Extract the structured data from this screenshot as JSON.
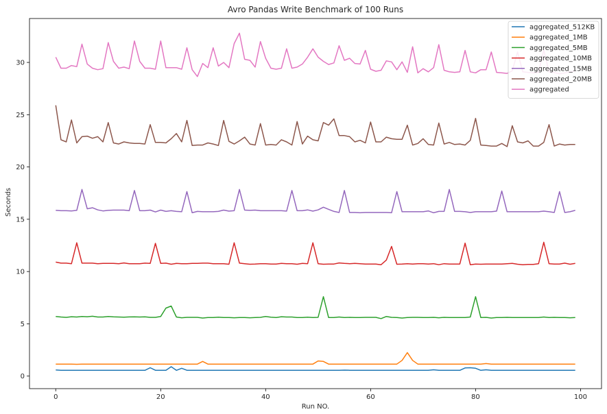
{
  "chart_data": {
    "type": "line",
    "title": "Avro Pandas Write Benchmark of 100 Runs",
    "xlabel": "Run NO.",
    "ylabel": "Seconds",
    "xlim": [
      -5,
      104
    ],
    "ylim": [
      -1.2,
      34.2
    ],
    "xticks": [
      0,
      20,
      40,
      60,
      80,
      100
    ],
    "yticks": [
      0,
      5,
      10,
      15,
      20,
      25,
      30
    ],
    "legend_position": "top-right",
    "x": [
      0,
      1,
      2,
      3,
      4,
      5,
      6,
      7,
      8,
      9,
      10,
      11,
      12,
      13,
      14,
      15,
      16,
      17,
      18,
      19,
      20,
      21,
      22,
      23,
      24,
      25,
      26,
      27,
      28,
      29,
      30,
      31,
      32,
      33,
      34,
      35,
      36,
      37,
      38,
      39,
      40,
      41,
      42,
      43,
      44,
      45,
      46,
      47,
      48,
      49,
      50,
      51,
      52,
      53,
      54,
      55,
      56,
      57,
      58,
      59,
      60,
      61,
      62,
      63,
      64,
      65,
      66,
      67,
      68,
      69,
      70,
      71,
      72,
      73,
      74,
      75,
      76,
      77,
      78,
      79,
      80,
      81,
      82,
      83,
      84,
      85,
      86,
      87,
      88,
      89,
      90,
      91,
      92,
      93,
      94,
      95,
      96,
      97,
      98,
      99
    ],
    "series": [
      {
        "name": "aggregated_512KB",
        "color": "#1f77b4",
        "values": [
          0.58,
          0.56,
          0.56,
          0.55,
          0.56,
          0.55,
          0.56,
          0.55,
          0.55,
          0.55,
          0.55,
          0.55,
          0.56,
          0.55,
          0.55,
          0.55,
          0.55,
          0.55,
          0.8,
          0.56,
          0.55,
          0.55,
          0.9,
          0.55,
          0.75,
          0.56,
          0.55,
          0.55,
          0.56,
          0.55,
          0.55,
          0.55,
          0.55,
          0.55,
          0.55,
          0.56,
          0.55,
          0.55,
          0.55,
          0.55,
          0.55,
          0.56,
          0.55,
          0.55,
          0.55,
          0.55,
          0.55,
          0.55,
          0.55,
          0.55,
          0.55,
          0.55,
          0.55,
          0.55,
          0.56,
          0.57,
          0.56,
          0.56,
          0.55,
          0.55,
          0.55,
          0.55,
          0.55,
          0.55,
          0.55,
          0.55,
          0.55,
          0.55,
          0.55,
          0.55,
          0.55,
          0.55,
          0.6,
          0.55,
          0.55,
          0.55,
          0.55,
          0.55,
          0.78,
          0.8,
          0.75,
          0.55,
          0.6,
          0.56,
          0.55,
          0.55,
          0.55,
          0.55,
          0.55,
          0.55,
          0.55,
          0.55,
          0.55,
          0.55,
          0.55,
          0.55,
          0.55,
          0.55,
          0.55,
          0.55
        ]
      },
      {
        "name": "aggregated_1MB",
        "color": "#ff7f0e",
        "values": [
          1.15,
          1.15,
          1.15,
          1.15,
          1.13,
          1.14,
          1.15,
          1.15,
          1.15,
          1.15,
          1.14,
          1.14,
          1.15,
          1.15,
          1.14,
          1.15,
          1.14,
          1.14,
          1.14,
          1.15,
          1.15,
          1.14,
          1.15,
          1.15,
          1.15,
          1.14,
          1.15,
          1.15,
          1.4,
          1.15,
          1.14,
          1.14,
          1.15,
          1.15,
          1.15,
          1.15,
          1.15,
          1.15,
          1.15,
          1.14,
          1.15,
          1.15,
          1.15,
          1.15,
          1.15,
          1.15,
          1.15,
          1.15,
          1.15,
          1.15,
          1.45,
          1.4,
          1.15,
          1.15,
          1.15,
          1.14,
          1.15,
          1.15,
          1.15,
          1.15,
          1.15,
          1.14,
          1.15,
          1.15,
          1.15,
          1.15,
          1.5,
          2.25,
          1.5,
          1.15,
          1.15,
          1.15,
          1.15,
          1.15,
          1.15,
          1.14,
          1.15,
          1.15,
          1.14,
          1.15,
          1.15,
          1.15,
          1.2,
          1.15,
          1.15,
          1.15,
          1.15,
          1.15,
          1.15,
          1.15,
          1.14,
          1.15,
          1.15,
          1.15,
          1.15,
          1.15,
          1.15,
          1.15,
          1.15,
          1.15
        ]
      },
      {
        "name": "aggregated_5MB",
        "color": "#2ca02c",
        "values": [
          5.7,
          5.65,
          5.62,
          5.68,
          5.65,
          5.7,
          5.68,
          5.72,
          5.65,
          5.65,
          5.7,
          5.67,
          5.65,
          5.63,
          5.66,
          5.67,
          5.65,
          5.67,
          5.62,
          5.62,
          5.7,
          6.5,
          6.7,
          5.65,
          5.58,
          5.62,
          5.62,
          5.62,
          5.55,
          5.6,
          5.6,
          5.63,
          5.6,
          5.6,
          5.58,
          5.6,
          5.6,
          5.58,
          5.6,
          5.62,
          5.7,
          5.63,
          5.6,
          5.68,
          5.65,
          5.65,
          5.6,
          5.6,
          5.63,
          5.6,
          5.62,
          7.6,
          5.6,
          5.6,
          5.65,
          5.6,
          5.62,
          5.6,
          5.6,
          5.62,
          5.62,
          5.62,
          5.5,
          5.7,
          5.62,
          5.6,
          5.55,
          5.6,
          5.62,
          5.62,
          5.6,
          5.6,
          5.62,
          5.58,
          5.62,
          5.6,
          5.6,
          5.6,
          5.6,
          5.65,
          7.6,
          5.6,
          5.62,
          5.55,
          5.6,
          5.6,
          5.62,
          5.6,
          5.6,
          5.6,
          5.6,
          5.6,
          5.6,
          5.65,
          5.6,
          5.62,
          5.6,
          5.6,
          5.58,
          5.6
        ]
      },
      {
        "name": "aggregated_10MB",
        "color": "#d62728",
        "values": [
          10.9,
          10.8,
          10.8,
          10.75,
          12.75,
          10.8,
          10.8,
          10.8,
          10.75,
          10.78,
          10.78,
          10.78,
          10.75,
          10.82,
          10.75,
          10.75,
          10.75,
          10.8,
          10.78,
          12.7,
          10.78,
          10.8,
          10.7,
          10.78,
          10.75,
          10.75,
          10.78,
          10.78,
          10.8,
          10.8,
          10.75,
          10.75,
          10.75,
          10.7,
          12.75,
          10.8,
          10.75,
          10.7,
          10.72,
          10.75,
          10.75,
          10.72,
          10.72,
          10.78,
          10.75,
          10.75,
          10.7,
          10.78,
          10.75,
          12.75,
          10.75,
          10.7,
          10.72,
          10.72,
          10.82,
          10.78,
          10.75,
          10.78,
          10.75,
          10.72,
          10.72,
          10.72,
          10.65,
          11.1,
          12.4,
          10.7,
          10.72,
          10.75,
          10.72,
          10.75,
          10.75,
          10.72,
          10.75,
          10.65,
          10.75,
          10.72,
          10.72,
          10.72,
          12.72,
          10.65,
          10.72,
          10.7,
          10.72,
          10.72,
          10.72,
          10.72,
          10.75,
          10.78,
          10.7,
          10.65,
          10.68,
          10.68,
          10.75,
          12.8,
          10.75,
          10.72,
          10.72,
          10.8,
          10.7,
          10.78
        ]
      },
      {
        "name": "aggregated_15MB",
        "color": "#9467bd",
        "values": [
          15.85,
          15.82,
          15.82,
          15.8,
          15.85,
          17.85,
          16.0,
          16.1,
          15.9,
          15.8,
          15.85,
          15.88,
          15.88,
          15.88,
          15.82,
          17.75,
          15.82,
          15.82,
          15.88,
          15.7,
          15.88,
          15.75,
          15.82,
          15.75,
          15.72,
          17.65,
          15.62,
          15.75,
          15.72,
          15.72,
          15.72,
          15.75,
          15.88,
          15.78,
          15.82,
          17.85,
          15.88,
          15.85,
          15.88,
          15.82,
          15.82,
          15.82,
          15.82,
          15.82,
          15.78,
          17.75,
          15.82,
          15.82,
          15.9,
          15.78,
          15.9,
          16.15,
          15.95,
          15.75,
          15.65,
          17.75,
          15.65,
          15.65,
          15.62,
          15.65,
          15.65,
          15.65,
          15.65,
          15.65,
          15.62,
          17.65,
          15.72,
          15.72,
          15.72,
          15.72,
          15.72,
          15.8,
          15.62,
          15.75,
          15.75,
          17.85,
          15.75,
          15.75,
          15.72,
          15.65,
          15.72,
          15.72,
          15.72,
          15.72,
          15.78,
          17.7,
          15.72,
          15.72,
          15.72,
          15.72,
          15.72,
          15.72,
          15.72,
          15.78,
          15.72,
          15.65,
          17.65,
          15.65,
          15.72,
          15.85
        ]
      },
      {
        "name": "aggregated_20MB",
        "color": "#8c564b",
        "values": [
          25.9,
          22.6,
          22.4,
          24.5,
          22.3,
          22.9,
          22.95,
          22.75,
          22.9,
          22.4,
          24.25,
          22.3,
          22.2,
          22.4,
          22.3,
          22.25,
          22.25,
          22.2,
          24.05,
          22.35,
          22.35,
          22.3,
          22.7,
          23.2,
          22.4,
          24.45,
          22.05,
          22.1,
          22.1,
          22.3,
          22.2,
          22.05,
          24.45,
          22.45,
          22.2,
          22.5,
          22.85,
          22.2,
          22.1,
          24.15,
          22.1,
          22.15,
          22.1,
          22.6,
          22.4,
          22.1,
          24.35,
          22.2,
          22.95,
          22.6,
          22.5,
          24.25,
          24.0,
          24.6,
          23.0,
          23.0,
          22.9,
          22.4,
          22.55,
          22.3,
          24.3,
          22.4,
          22.4,
          22.85,
          22.7,
          22.65,
          22.65,
          24.0,
          22.1,
          22.25,
          22.7,
          22.15,
          22.1,
          24.2,
          22.2,
          22.35,
          22.15,
          22.2,
          22.1,
          22.55,
          24.65,
          22.1,
          22.05,
          22.0,
          22.0,
          22.25,
          21.95,
          23.95,
          22.4,
          22.3,
          22.5,
          22.0,
          22.0,
          22.35,
          24.05,
          22.0,
          22.2,
          22.1,
          22.15,
          22.15
        ]
      },
      {
        "name": "aggregated",
        "color": "#e377c2",
        "values": [
          30.5,
          29.45,
          29.45,
          29.7,
          29.6,
          31.75,
          29.85,
          29.45,
          29.3,
          29.4,
          31.9,
          30.1,
          29.45,
          29.55,
          29.4,
          32.05,
          30.1,
          29.45,
          29.45,
          29.35,
          32.05,
          29.5,
          29.5,
          29.5,
          29.35,
          31.4,
          29.3,
          28.65,
          29.9,
          29.5,
          31.4,
          29.65,
          30.0,
          29.5,
          31.8,
          32.8,
          30.3,
          30.2,
          29.55,
          32.0,
          30.4,
          29.45,
          29.35,
          29.45,
          31.3,
          29.45,
          29.55,
          29.85,
          30.5,
          31.3,
          30.5,
          30.1,
          29.8,
          29.95,
          31.6,
          30.2,
          30.4,
          29.9,
          29.85,
          31.15,
          29.35,
          29.15,
          29.25,
          30.15,
          30.05,
          29.3,
          30.05,
          29.05,
          31.5,
          29.0,
          29.4,
          29.1,
          29.5,
          31.7,
          29.25,
          29.1,
          29.05,
          29.1,
          31.15,
          29.1,
          29.0,
          29.3,
          29.3,
          31.0,
          29.05,
          29.0,
          28.95,
          29.2,
          31.0,
          29.1,
          29.05,
          29.0,
          29.05,
          31.2,
          29.1,
          29.05,
          28.9,
          29.0,
          29.1,
          29.2
        ]
      }
    ]
  }
}
